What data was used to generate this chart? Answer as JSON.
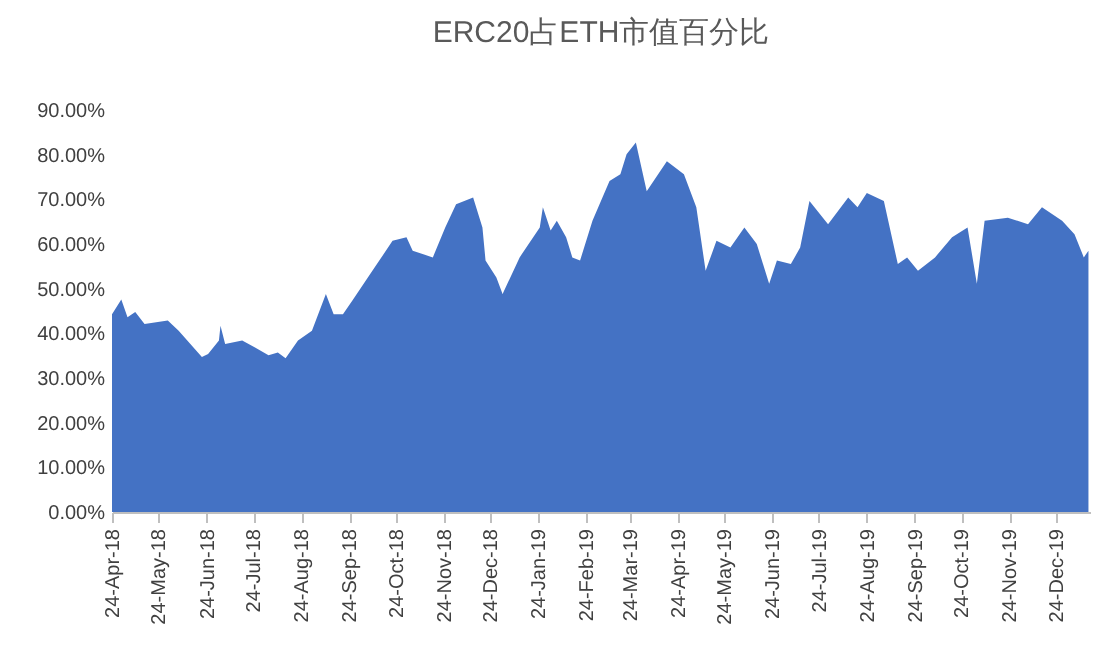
{
  "chart_data": {
    "type": "area",
    "title": "ERC20占ETH市值百分比",
    "x": [
      "2018-04-24",
      "2018-04-30",
      "2018-05-04",
      "2018-05-09",
      "2018-05-15",
      "2018-05-30",
      "2018-06-06",
      "2018-06-21",
      "2018-06-25",
      "2018-07-02",
      "2018-07-03",
      "2018-07-06",
      "2018-07-17",
      "2018-07-25",
      "2018-08-03",
      "2018-08-09",
      "2018-08-14",
      "2018-08-22",
      "2018-08-31",
      "2018-09-09",
      "2018-09-14",
      "2018-09-20",
      "2018-09-26",
      "2018-10-09",
      "2018-10-22",
      "2018-10-31",
      "2018-11-04",
      "2018-11-17",
      "2018-11-25",
      "2018-12-02",
      "2018-12-13",
      "2018-12-19",
      "2018-12-21",
      "2018-12-28",
      "2019-01-01",
      "2019-01-12",
      "2019-01-25",
      "2019-01-27",
      "2019-02-01",
      "2019-02-05",
      "2019-02-11",
      "2019-02-15",
      "2019-02-20",
      "2019-02-28",
      "2019-03-11",
      "2019-03-18",
      "2019-03-22",
      "2019-03-28",
      "2019-04-04",
      "2019-04-17",
      "2019-04-28",
      "2019-05-06",
      "2019-05-12",
      "2019-05-19",
      "2019-05-28",
      "2019-06-06",
      "2019-06-14",
      "2019-06-22",
      "2019-06-27",
      "2019-07-06",
      "2019-07-12",
      "2019-07-18",
      "2019-07-30",
      "2019-08-12",
      "2019-08-18",
      "2019-08-24",
      "2019-09-04",
      "2019-09-13",
      "2019-09-19",
      "2019-09-26",
      "2019-10-07",
      "2019-10-18",
      "2019-10-28",
      "2019-11-03",
      "2019-11-08",
      "2019-11-23",
      "2019-12-06",
      "2019-12-15",
      "2019-12-28",
      "2020-01-05",
      "2020-01-11",
      "2020-01-14"
    ],
    "series": [
      {
        "color": "#4472c4",
        "values": [
          44.3,
          47.6,
          43.6,
          44.8,
          42.1,
          42.9,
          40.6,
          34.7,
          35.4,
          38.4,
          41.7,
          37.6,
          38.4,
          36.9,
          35.1,
          35.7,
          34.4,
          38.4,
          40.6,
          48.8,
          44.3,
          44.3,
          47.3,
          54.0,
          60.7,
          61.5,
          58.5,
          57.0,
          63.7,
          68.9,
          70.4,
          63.7,
          56.3,
          52.5,
          48.8,
          57.0,
          63.7,
          68.2,
          63.0,
          65.2,
          61.5,
          57.0,
          56.3,
          65.2,
          74.1,
          75.6,
          80.1,
          82.7,
          71.8,
          78.5,
          75.6,
          68.2,
          54.0,
          60.7,
          59.2,
          63.7,
          60.0,
          51.1,
          56.3,
          55.5,
          59.2,
          69.6,
          64.4,
          70.4,
          68.2,
          71.4,
          69.6,
          55.5,
          57.0,
          54.0,
          57.0,
          61.5,
          63.7,
          51.1,
          65.2,
          65.9,
          64.4,
          68.2,
          65.2,
          62.2,
          57.0,
          58.5
        ]
      }
    ],
    "xlim": [
      "2018-04-24",
      "2020-01-15"
    ],
    "xticks": [
      {
        "value": "2018-04-24",
        "label": "24-Apr-18"
      },
      {
        "value": "2018-05-24",
        "label": "24-May-18"
      },
      {
        "value": "2018-06-24",
        "label": "24-Jun-18"
      },
      {
        "value": "2018-07-24",
        "label": "24-Jul-18"
      },
      {
        "value": "2018-08-24",
        "label": "24-Aug-18"
      },
      {
        "value": "2018-09-24",
        "label": "24-Sep-18"
      },
      {
        "value": "2018-10-24",
        "label": "24-Oct-18"
      },
      {
        "value": "2018-11-24",
        "label": "24-Nov-18"
      },
      {
        "value": "2018-12-24",
        "label": "24-Dec-18"
      },
      {
        "value": "2019-01-24",
        "label": "24-Jan-19"
      },
      {
        "value": "2019-02-24",
        "label": "24-Feb-19"
      },
      {
        "value": "2019-03-24",
        "label": "24-Mar-19"
      },
      {
        "value": "2019-04-24",
        "label": "24-Apr-19"
      },
      {
        "value": "2019-05-24",
        "label": "24-May-19"
      },
      {
        "value": "2019-06-24",
        "label": "24-Jun-19"
      },
      {
        "value": "2019-07-24",
        "label": "24-Jul-19"
      },
      {
        "value": "2019-08-24",
        "label": "24-Aug-19"
      },
      {
        "value": "2019-09-24",
        "label": "24-Sep-19"
      },
      {
        "value": "2019-10-24",
        "label": "24-Oct-19"
      },
      {
        "value": "2019-11-24",
        "label": "24-Nov-19"
      },
      {
        "value": "2019-12-24",
        "label": "24-Dec-19"
      }
    ],
    "ylim": [
      0,
      90
    ],
    "yticks": [
      {
        "value": 0,
        "label": "0.00%"
      },
      {
        "value": 10,
        "label": "10.00%"
      },
      {
        "value": 20,
        "label": "20.00%"
      },
      {
        "value": 30,
        "label": "30.00%"
      },
      {
        "value": 40,
        "label": "40.00%"
      },
      {
        "value": 50,
        "label": "50.00%"
      },
      {
        "value": 60,
        "label": "60.00%"
      },
      {
        "value": 70,
        "label": "70.00%"
      },
      {
        "value": 80,
        "label": "80.00%"
      },
      {
        "value": 90,
        "label": "90.00%"
      }
    ],
    "grid": false
  }
}
